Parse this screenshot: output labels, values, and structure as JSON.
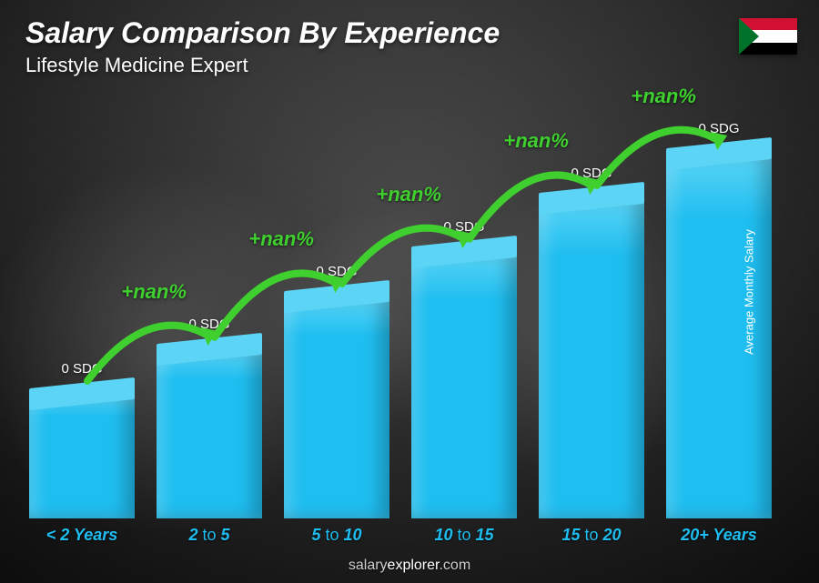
{
  "title": "Salary Comparison By Experience",
  "subtitle": "Lifestyle Medicine Expert",
  "yaxis_label": "Average Monthly Salary",
  "footer": {
    "brand_prefix": "salary",
    "brand_suffix": "explorer",
    "brand_tld": ".com"
  },
  "flag": {
    "stripes": [
      "#d21034",
      "#ffffff",
      "#000000"
    ],
    "triangle_color": "#007229"
  },
  "chart": {
    "type": "bar",
    "background": "radial-gradient-dark",
    "bar_color": "#1fbef0",
    "bar_top_color": "#5bd4f5",
    "label_color": "#1fbef0",
    "value_color": "#ffffff",
    "pct_color": "#3fcf2e",
    "arrow_color": "#3fcf2e",
    "bar_heights_pct": [
      28,
      38,
      50,
      60,
      72,
      82
    ],
    "bars": [
      {
        "label_html": "< 2 Years",
        "value": "0 SDG"
      },
      {
        "label_html": "2 <span class='thin'>to</span> 5",
        "value": "0 SDG"
      },
      {
        "label_html": "5 <span class='thin'>to</span> 10",
        "value": "0 SDG"
      },
      {
        "label_html": "10 <span class='thin'>to</span> 15",
        "value": "0 SDG"
      },
      {
        "label_html": "15 <span class='thin'>to</span> 20",
        "value": "0 SDG"
      },
      {
        "label_html": "20+ Years",
        "value": "0 SDG"
      }
    ],
    "pct_changes": [
      "+nan%",
      "+nan%",
      "+nan%",
      "+nan%",
      "+nan%"
    ]
  }
}
